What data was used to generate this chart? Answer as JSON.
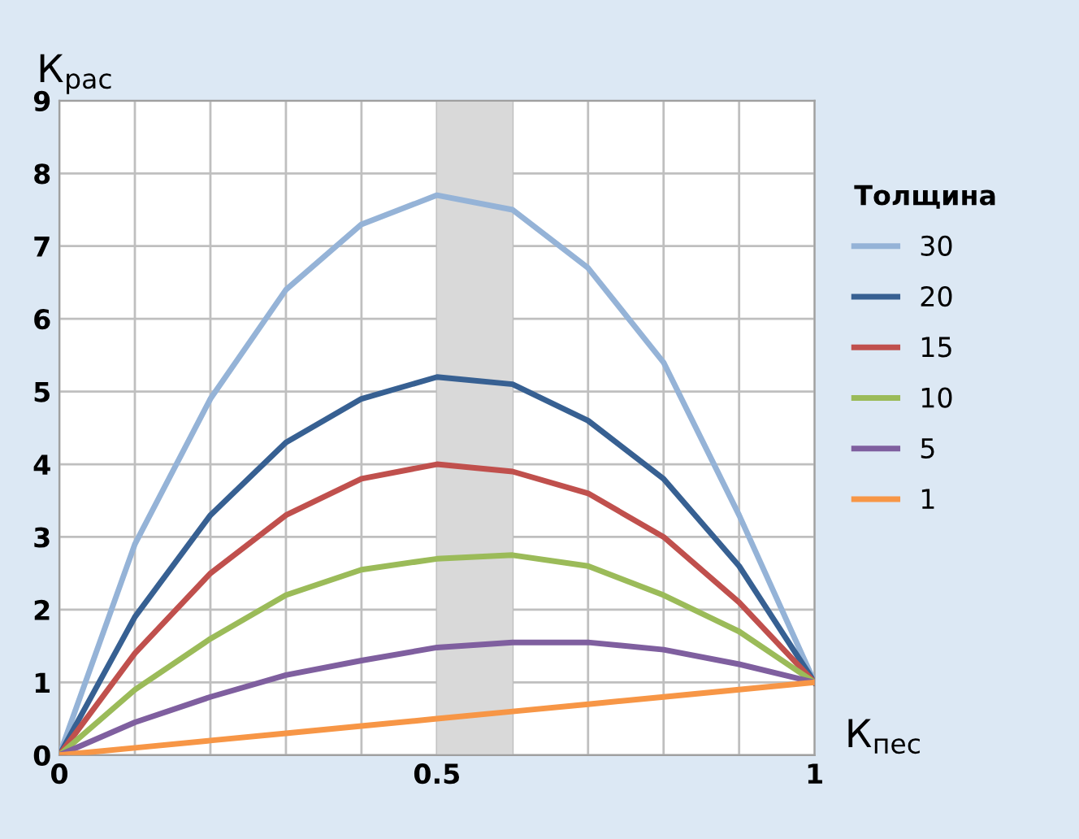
{
  "chart_data": {
    "type": "line",
    "xlabel": "К$_{пес}$",
    "ylabel": "К$_{рас}$",
    "legend_title": "Толщина",
    "x": [
      0,
      0.1,
      0.2,
      0.3,
      0.4,
      0.5,
      0.6,
      0.7,
      0.8,
      0.9,
      1
    ],
    "series": [
      {
        "name": "30",
        "color": "#95b3d7",
        "values": [
          0,
          2.9,
          4.9,
          6.4,
          7.3,
          7.7,
          7.5,
          6.7,
          5.4,
          3.3,
          1
        ]
      },
      {
        "name": "20",
        "color": "#376092",
        "values": [
          0,
          1.9,
          3.3,
          4.3,
          4.9,
          5.2,
          5.1,
          4.6,
          3.8,
          2.6,
          1
        ]
      },
      {
        "name": "15",
        "color": "#c0504d",
        "values": [
          0,
          1.4,
          2.5,
          3.3,
          3.8,
          4.0,
          3.9,
          3.6,
          3.0,
          2.1,
          1
        ]
      },
      {
        "name": "10",
        "color": "#9bbb59",
        "values": [
          0,
          0.9,
          1.6,
          2.2,
          2.55,
          2.7,
          2.75,
          2.6,
          2.2,
          1.7,
          1
        ]
      },
      {
        "name": "5",
        "color": "#7f5f9f",
        "values": [
          0,
          0.45,
          0.8,
          1.1,
          1.3,
          1.48,
          1.55,
          1.55,
          1.45,
          1.25,
          1
        ]
      },
      {
        "name": "1",
        "color": "#f79646",
        "values": [
          0,
          0.1,
          0.2,
          0.3,
          0.4,
          0.5,
          0.6,
          0.7,
          0.8,
          0.9,
          1
        ]
      }
    ],
    "xlim": [
      0,
      1
    ],
    "ylim": [
      0,
      9
    ],
    "xticks": [
      0,
      {
        "value": 0.1,
        "label": null
      },
      {
        "value": 0.2,
        "label": null
      },
      {
        "value": 0.3,
        "label": null
      },
      {
        "value": 0.4,
        "label": null
      },
      0.5,
      {
        "value": 0.6,
        "label": null
      },
      {
        "value": 0.7,
        "label": null
      },
      {
        "value": 0.8,
        "label": null
      },
      {
        "value": 0.9,
        "label": null
      },
      1
    ],
    "yticks": [
      0,
      1,
      2,
      3,
      4,
      5,
      6,
      7,
      8,
      9
    ],
    "bands": [
      {
        "axis": "x",
        "from": 0.5,
        "to": 0.6,
        "color": "#d9d9d9"
      }
    ],
    "grid": true,
    "legend": "right",
    "marker": "none",
    "line_style": "solid"
  }
}
